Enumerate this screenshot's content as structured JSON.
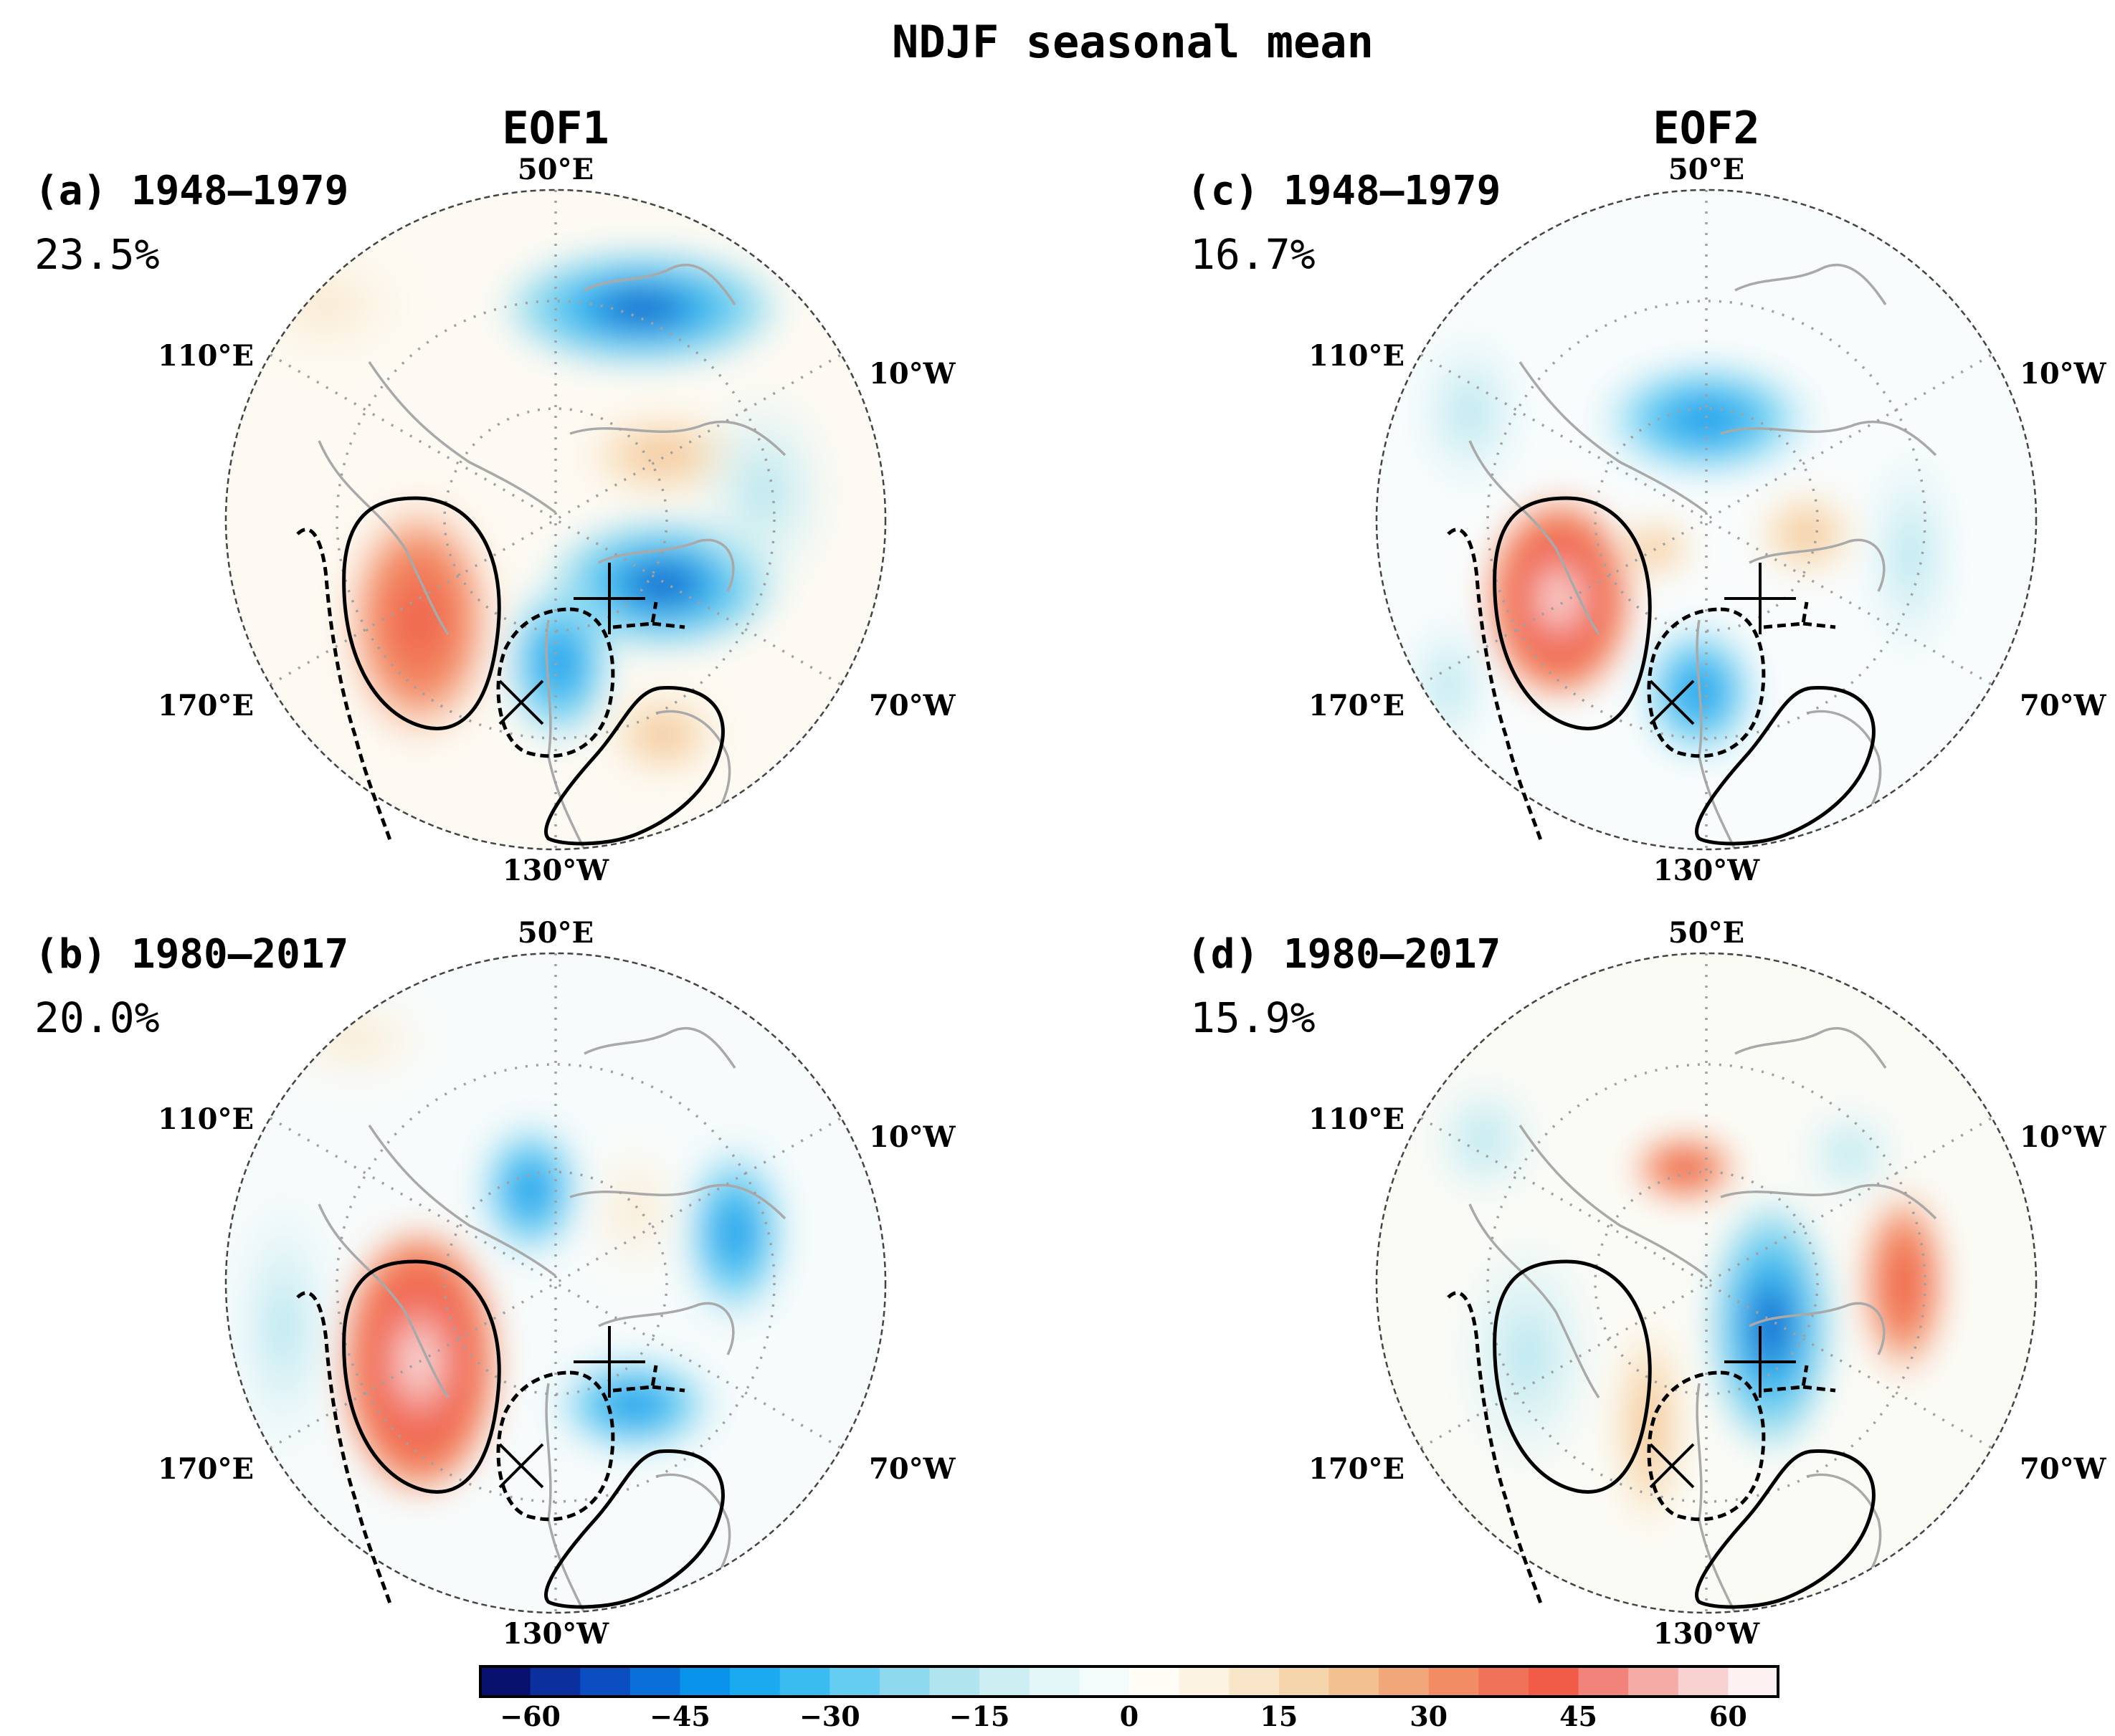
{
  "title": "NDJF seasonal mean",
  "columns": [
    "EOF1",
    "EOF2"
  ],
  "panels": [
    {
      "id": "a",
      "label": "(a) 1948–1979",
      "variance": "23.5%"
    },
    {
      "id": "b",
      "label": "(b) 1980–2017",
      "variance": "20.0%"
    },
    {
      "id": "c",
      "label": "(c) 1948–1979",
      "variance": "16.7%"
    },
    {
      "id": "d",
      "label": "(d) 1980–2017",
      "variance": "15.9%"
    }
  ],
  "longitude_labels": {
    "top": "50°E",
    "upper_left": "110°E",
    "upper_right": "10°W",
    "lower_left": "170°E",
    "lower_right": "70°W",
    "bottom": "130°W"
  },
  "colorbar": {
    "min": -65,
    "max": 65,
    "step": 5,
    "tick_values": [
      -60,
      -45,
      -30,
      -15,
      0,
      15,
      30,
      45,
      60
    ],
    "tick_labels": [
      "−60",
      "−45",
      "−30",
      "−15",
      "0",
      "15",
      "30",
      "45",
      "60"
    ],
    "colors": [
      "#08106e",
      "#0b2f9c",
      "#0a4ec2",
      "#0a6fd8",
      "#0a93ea",
      "#19aaf0",
      "#3bbcf1",
      "#66cdf2",
      "#8ed9ee",
      "#b0e4ef",
      "#cdeff3",
      "#e3f6f7",
      "#f4fbfb",
      "#fffdf5",
      "#fcf3e2",
      "#f9e6c9",
      "#f5d6ac",
      "#f3c190",
      "#f2a77a",
      "#f28c64",
      "#f07258",
      "#f05c48",
      "#f2837a",
      "#f5aca7",
      "#f8d2d0",
      "#fdf1f1"
    ]
  },
  "colors": {
    "positive": "#f05c48",
    "negative": "#0a93ea",
    "contour": "#000000",
    "coastline": "#a9a9a9",
    "grid": "#a0a0a0"
  }
}
